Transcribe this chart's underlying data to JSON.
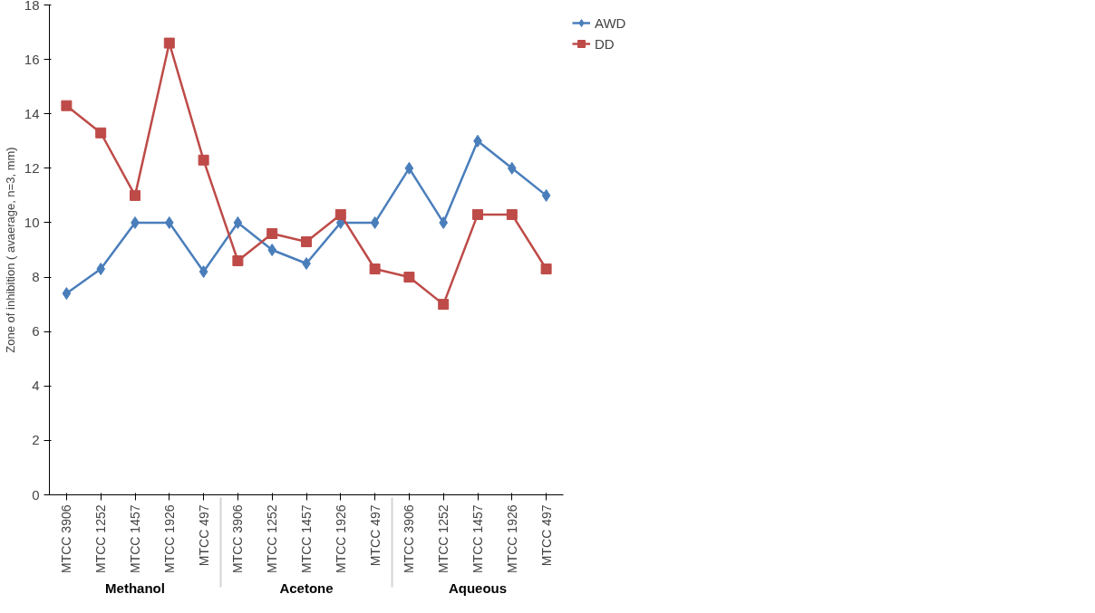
{
  "chart_data": {
    "type": "line",
    "ylabel": "Zone of inhibition ( avaerage, n=3, mm)",
    "categories": [
      "MTCC 3906",
      "MTCC 1252",
      "MTCC 1457",
      "MTCC 1926",
      "MTCC 497",
      "MTCC 3906",
      "MTCC 1252",
      "MTCC 1457",
      "MTCC 1926",
      "MTCC 497",
      "MTCC 3906",
      "MTCC 1252",
      "MTCC 1457",
      "MTCC 1926",
      "MTCC 497"
    ],
    "annotations": [
      "Methanol",
      "Acetone",
      "Aqueous"
    ],
    "series": [
      {
        "name": "AWD",
        "color": "#4a7ebb",
        "marker": "diamond",
        "values": [
          7.4,
          8.3,
          10,
          10,
          8.2,
          10,
          9,
          8.5,
          10,
          10,
          12,
          10,
          13,
          12,
          11
        ]
      },
      {
        "name": "DD",
        "color": "#be4b48",
        "marker": "square",
        "values": [
          14.3,
          13.3,
          11,
          16.6,
          12.3,
          8.6,
          9.6,
          9.3,
          10.3,
          8.3,
          8,
          7,
          10.3,
          10.3,
          8.3
        ]
      }
    ],
    "ylim": [
      0,
      18
    ],
    "yticks": [
      0,
      2,
      4,
      6,
      8,
      10,
      12,
      14,
      16,
      18
    ],
    "grid": false,
    "legend": "right"
  }
}
